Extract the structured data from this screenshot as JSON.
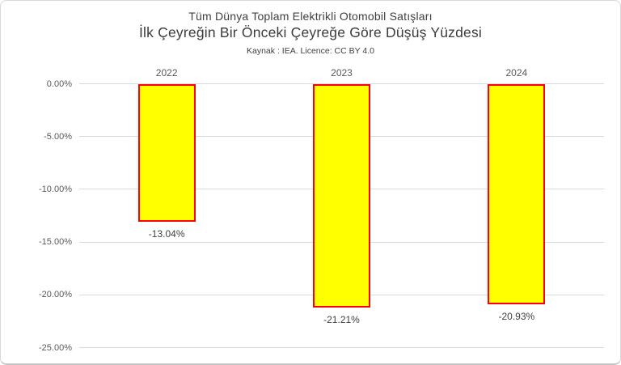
{
  "chart_data": {
    "type": "bar",
    "title_line1": "Tüm Dünya Toplam Elektrikli Otomobil Satışları",
    "title_line2": "İlk Çeyreğin Bir Önceki Çeyreğe Göre Düşüş Yüzdesi",
    "source": "Kaynak : IEA. Licence: CC BY 4.0",
    "categories": [
      "2022",
      "2023",
      "2024"
    ],
    "values": [
      -13.04,
      -21.21,
      -20.93
    ],
    "data_labels": [
      "-13.04%",
      "-21.21%",
      "-20.93%"
    ],
    "y_ticks": [
      {
        "value": 0,
        "label": "0.00%"
      },
      {
        "value": -5,
        "label": "-5.00%"
      },
      {
        "value": -10,
        "label": "-10.00%"
      },
      {
        "value": -15,
        "label": "-15.00%"
      },
      {
        "value": -20,
        "label": "-20.00%"
      },
      {
        "value": -25,
        "label": "-25.00%"
      }
    ],
    "ylim": [
      -25,
      0
    ],
    "xlabel": "",
    "ylabel": "",
    "grid": true,
    "legend": "none",
    "colors": {
      "bar_fill": "#FFFF00",
      "bar_border": "#FF0000",
      "gridline": "#D9D9D9",
      "axis_label": "#595959",
      "title_text": "#404040",
      "data_label": "#404040",
      "frame_border": "#D9D9D9"
    }
  }
}
